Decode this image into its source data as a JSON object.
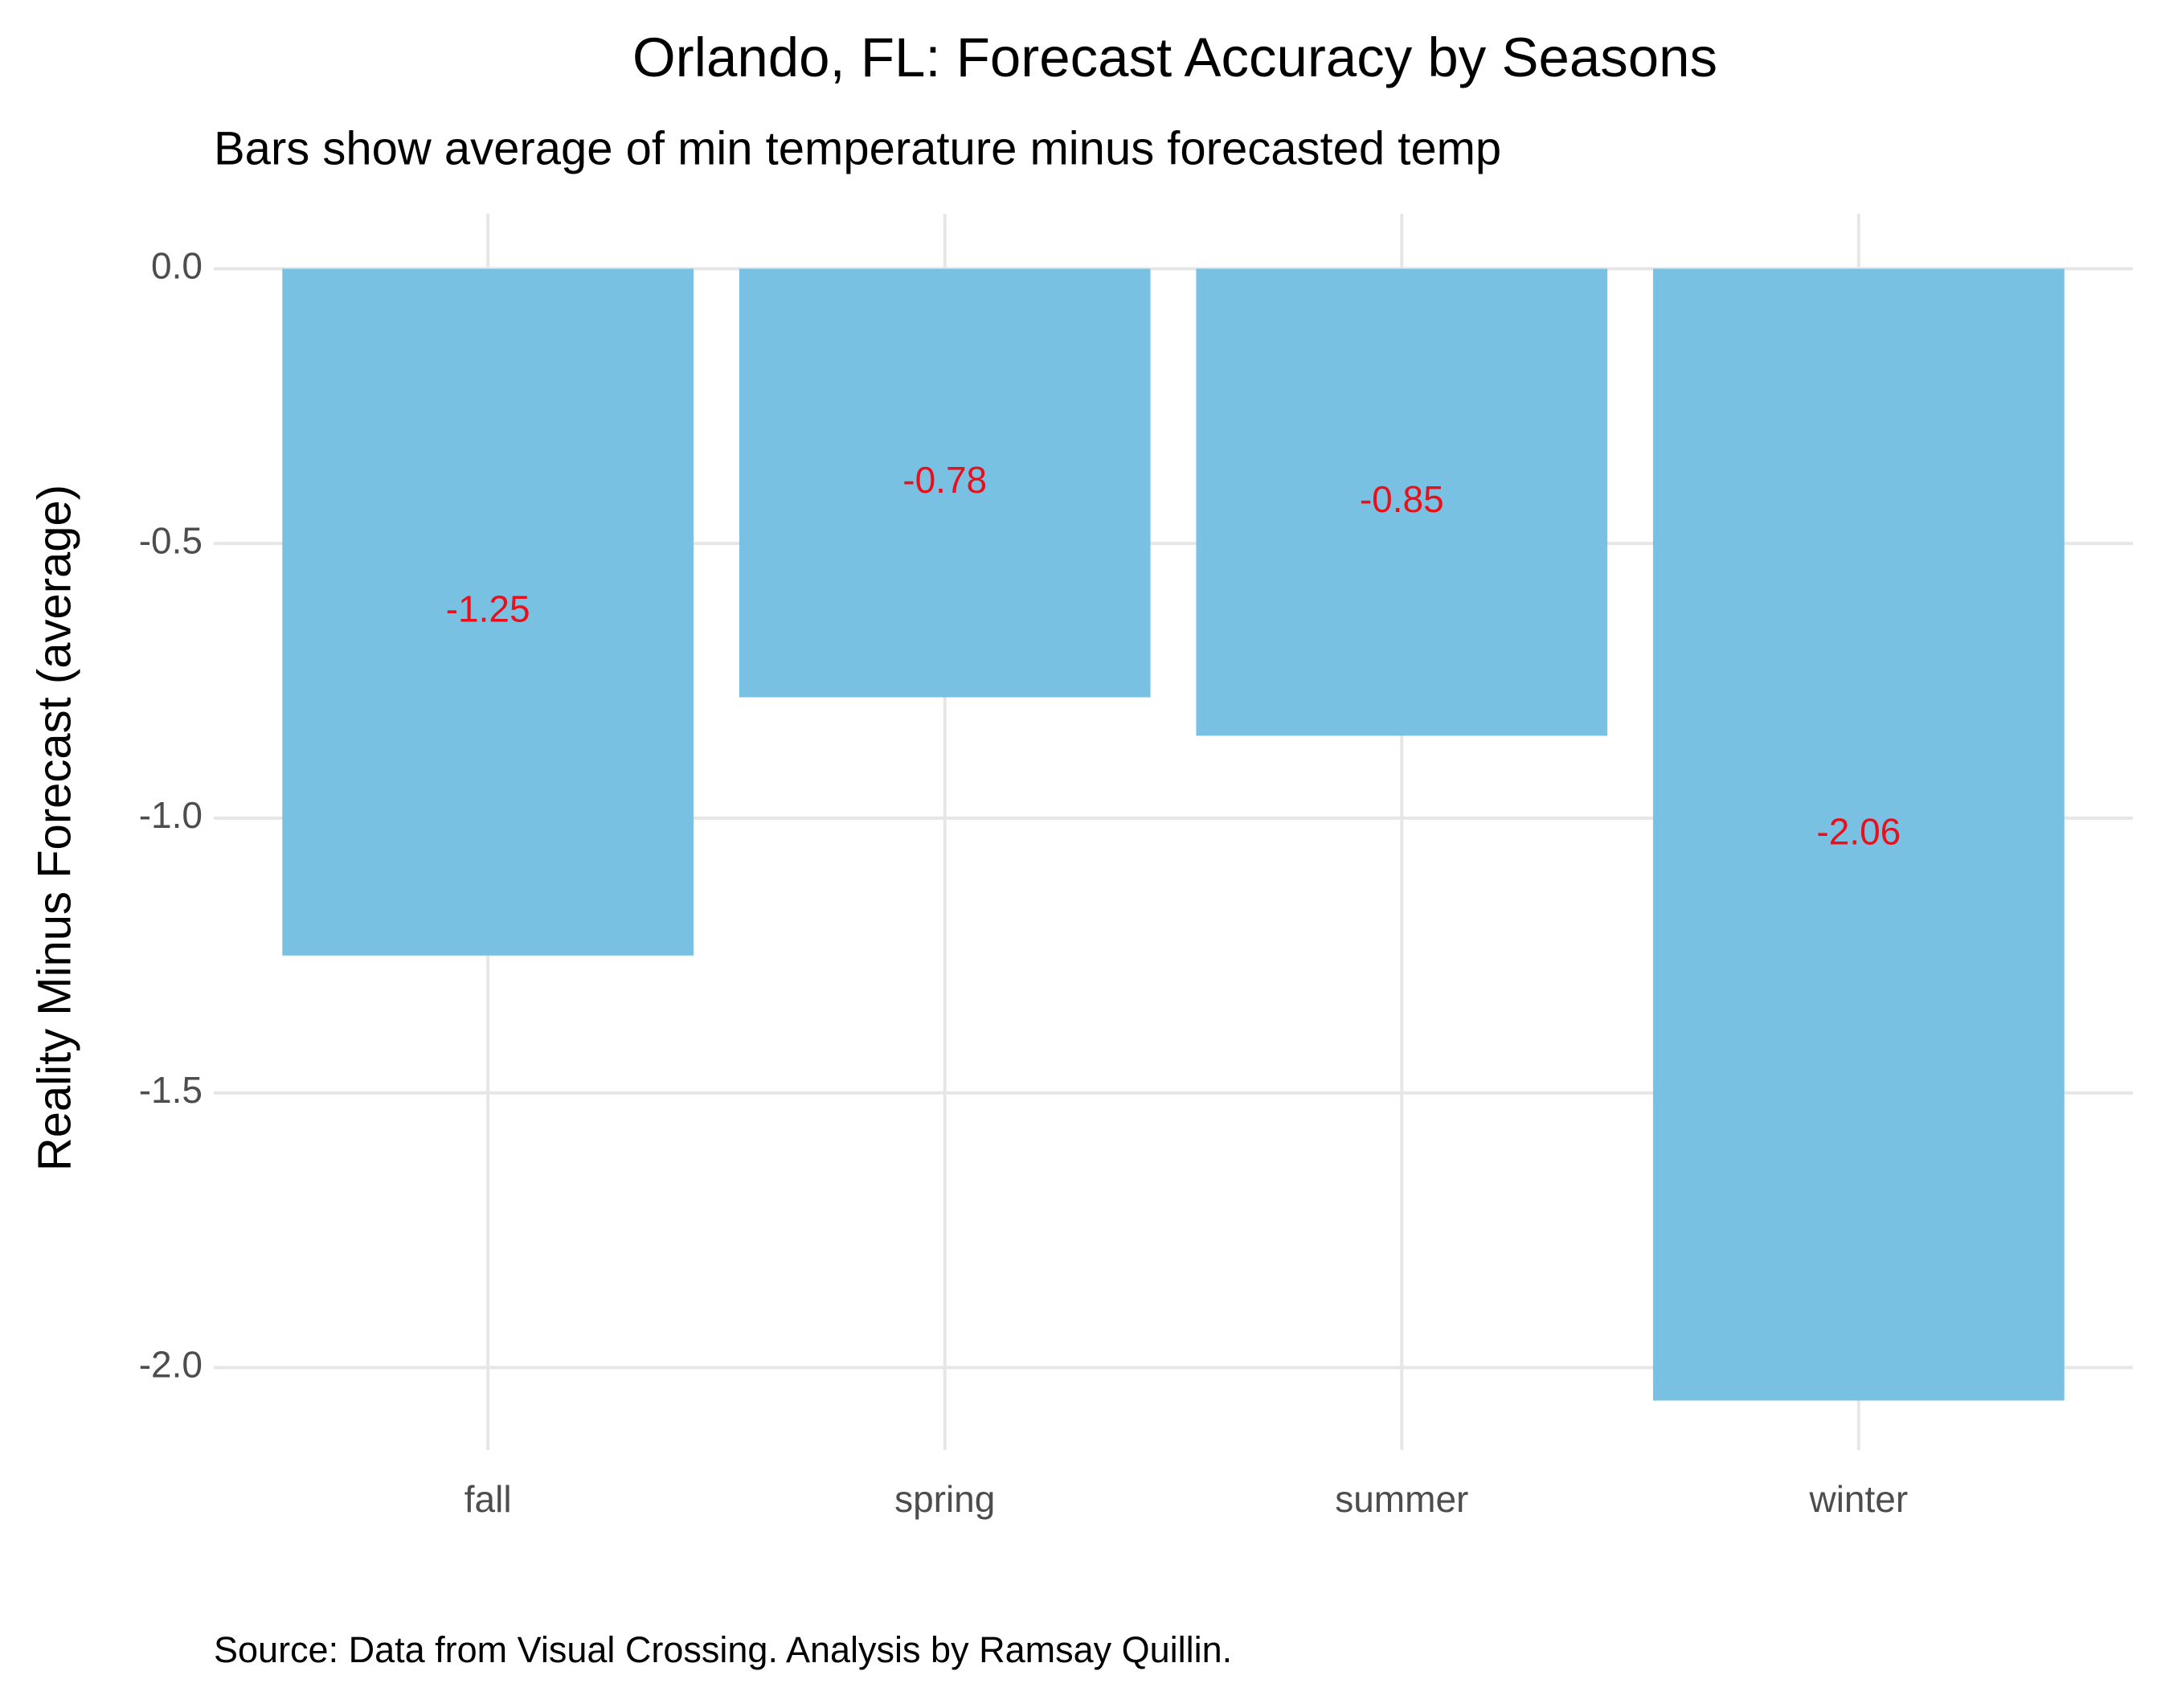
{
  "chart_data": {
    "type": "bar",
    "title": "Orlando, FL: Forecast Accuracy by Seasons",
    "subtitle": "Bars show average of min temperature minus forecasted temp",
    "y_label": "Reality Minus Forecast (average)",
    "caption": "Source: Data from Visual Crossing. Analysis by Ramsay Quillin.",
    "categories": [
      "fall",
      "spring",
      "summer",
      "winter"
    ],
    "values": [
      -1.25,
      -0.78,
      -0.85,
      -2.06
    ],
    "color": "#78c1e3",
    "label_color": "#e8101a",
    "ylim": [
      -2.15,
      0.1
    ],
    "yticks": [
      {
        "value": -2,
        "label": "-2.0"
      },
      {
        "value": -1.5,
        "label": "-1.5"
      },
      {
        "value": -1,
        "label": "-1.0"
      },
      {
        "value": -0.5,
        "label": "-0.5"
      },
      {
        "value": 0,
        "label": "0.0"
      }
    ],
    "grid": true
  }
}
